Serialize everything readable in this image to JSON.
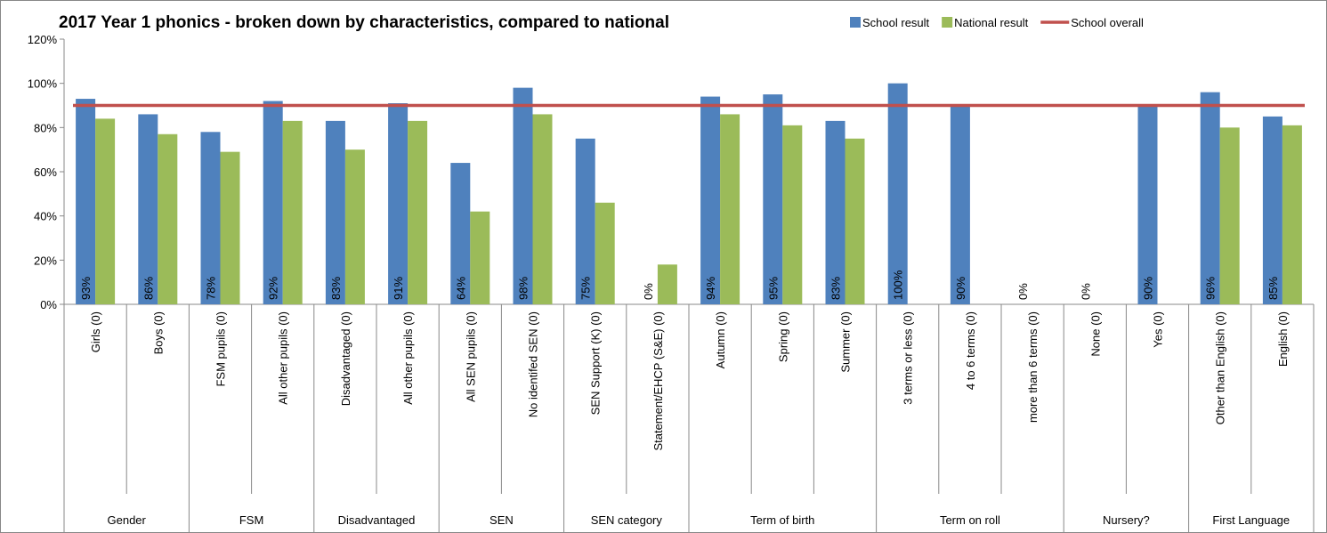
{
  "chart_data": {
    "type": "bar",
    "title": "2017 Year 1 phonics - broken down by characteristics, compared to national",
    "groups": [
      {
        "name": "Gender",
        "categories": [
          "Girls (0)",
          "Boys (0)"
        ]
      },
      {
        "name": "FSM",
        "categories": [
          "FSM pupils (0)",
          "All other pupils (0)"
        ]
      },
      {
        "name": "Disadvantaged",
        "categories": [
          "Disadvantaged (0)",
          "All other pupils (0)"
        ]
      },
      {
        "name": "SEN",
        "categories": [
          "All SEN pupils (0)",
          "No identifed SEN (0)"
        ]
      },
      {
        "name": "SEN category",
        "categories": [
          "SEN Support (K) (0)",
          "Statement/EHCP (S&E) (0)"
        ]
      },
      {
        "name": "Term of birth",
        "categories": [
          "Autumn (0)",
          "Spring (0)",
          "Summer (0)"
        ]
      },
      {
        "name": "Term on roll",
        "categories": [
          "3 terms or less (0)",
          "4 to 6 terms (0)",
          "more than 6 terms (0)"
        ]
      },
      {
        "name": "Nursery?",
        "categories": [
          "None (0)",
          "Yes (0)"
        ]
      },
      {
        "name": "First Language",
        "categories": [
          "Other than English (0)",
          "English (0)"
        ]
      }
    ],
    "series": [
      {
        "name": "School result",
        "color": "#4f81bd",
        "values": [
          93,
          86,
          78,
          92,
          83,
          91,
          64,
          98,
          75,
          0,
          94,
          95,
          83,
          100,
          90,
          0,
          0,
          90,
          96,
          85
        ],
        "value_labels": [
          "93%",
          "86%",
          "78%",
          "92%",
          "83%",
          "91%",
          "64%",
          "98%",
          "75%",
          "0%",
          "94%",
          "95%",
          "83%",
          "100%",
          "90%",
          "0%",
          "0%",
          "90%",
          "96%",
          "85%"
        ]
      },
      {
        "name": "National result",
        "color": "#9bbb59",
        "values": [
          84,
          77,
          69,
          83,
          70,
          83,
          42,
          86,
          46,
          18,
          86,
          81,
          75,
          null,
          null,
          null,
          null,
          null,
          80,
          81
        ]
      }
    ],
    "overall": {
      "name": "School overall",
      "color": "#c0504d",
      "value": 90
    },
    "ylim": [
      0,
      120
    ],
    "yticks": [
      {
        "value": 0,
        "label": "0%"
      },
      {
        "value": 20,
        "label": "20%"
      },
      {
        "value": 40,
        "label": "40%"
      },
      {
        "value": 60,
        "label": "60%"
      },
      {
        "value": 80,
        "label": "80%"
      },
      {
        "value": 100,
        "label": "100%"
      },
      {
        "value": 120,
        "label": "120%"
      }
    ]
  }
}
